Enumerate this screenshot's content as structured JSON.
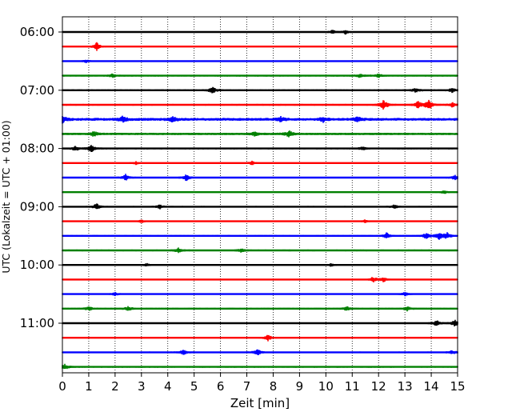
{
  "chart_data": {
    "type": "line",
    "title": "",
    "xlabel": "Zeit  [min]",
    "ylabel": "UTC (Lokalzeit = UTC + 01:00)",
    "xlim": [
      0,
      15
    ],
    "x_ticks": [
      "0",
      "1",
      "2",
      "3",
      "4",
      "5",
      "6",
      "7",
      "8",
      "9",
      "10",
      "11",
      "12",
      "13",
      "14",
      "15"
    ],
    "y_ticks": [
      "06:00",
      "07:00",
      "08:00",
      "09:00",
      "10:00",
      "11:00"
    ],
    "vertical_grid": true,
    "trace_interval_min": 15,
    "trace_colors": [
      "#000000",
      "#ff0000",
      "#0000ff",
      "#008000"
    ],
    "series": [
      {
        "start": "06:00",
        "color": "#000000",
        "noise": 0.6,
        "events": [
          [
            10.25,
            2.2
          ],
          [
            10.75,
            2.4
          ]
        ]
      },
      {
        "start": "06:15",
        "color": "#ff0000",
        "noise": 0.6,
        "events": [
          [
            1.3,
            4.2
          ]
        ]
      },
      {
        "start": "06:30",
        "color": "#0000ff",
        "noise": 0.6,
        "events": [
          [
            0.9,
            1.6
          ]
        ]
      },
      {
        "start": "06:45",
        "color": "#008000",
        "noise": 0.9,
        "events": [
          [
            1.9,
            1.6
          ],
          [
            11.3,
            1.8
          ],
          [
            12.0,
            1.8
          ]
        ]
      },
      {
        "start": "07:00",
        "color": "#000000",
        "noise": 1.0,
        "events": [
          [
            5.7,
            3.2
          ],
          [
            13.4,
            1.8
          ],
          [
            14.8,
            2.0
          ]
        ]
      },
      {
        "start": "07:15",
        "color": "#ff0000",
        "noise": 0.9,
        "events": [
          [
            12.2,
            5.0
          ],
          [
            13.5,
            3.2
          ],
          [
            13.9,
            5.0
          ],
          [
            14.8,
            2.4
          ]
        ]
      },
      {
        "start": "07:30",
        "color": "#0000ff",
        "noise": 1.5,
        "events": [
          [
            0.0,
            3.2
          ],
          [
            2.3,
            3.0
          ],
          [
            4.2,
            2.4
          ],
          [
            8.3,
            2.2
          ],
          [
            9.9,
            2.2
          ],
          [
            11.2,
            2.2
          ]
        ]
      },
      {
        "start": "07:45",
        "color": "#008000",
        "noise": 1.2,
        "events": [
          [
            1.2,
            2.4
          ],
          [
            7.3,
            2.0
          ],
          [
            8.6,
            3.0
          ]
        ]
      },
      {
        "start": "08:00",
        "color": "#000000",
        "noise": 0.9,
        "events": [
          [
            0.5,
            2.4
          ],
          [
            1.1,
            3.4
          ],
          [
            11.4,
            1.6
          ]
        ]
      },
      {
        "start": "08:15",
        "color": "#ff0000",
        "noise": 0.6,
        "events": [
          [
            2.8,
            1.6
          ],
          [
            7.2,
            2.0
          ]
        ]
      },
      {
        "start": "08:30",
        "color": "#0000ff",
        "noise": 0.8,
        "events": [
          [
            2.4,
            3.2
          ],
          [
            4.7,
            3.2
          ],
          [
            14.9,
            2.2
          ]
        ]
      },
      {
        "start": "08:45",
        "color": "#008000",
        "noise": 0.7,
        "events": [
          [
            14.5,
            1.6
          ]
        ]
      },
      {
        "start": "09:00",
        "color": "#000000",
        "noise": 0.8,
        "events": [
          [
            1.3,
            3.0
          ],
          [
            3.7,
            2.0
          ],
          [
            12.6,
            1.8
          ]
        ]
      },
      {
        "start": "09:15",
        "color": "#ff0000",
        "noise": 0.6,
        "events": [
          [
            3.0,
            1.6
          ],
          [
            11.5,
            1.6
          ]
        ]
      },
      {
        "start": "09:30",
        "color": "#0000ff",
        "noise": 0.8,
        "events": [
          [
            12.3,
            3.2
          ],
          [
            13.8,
            3.0
          ],
          [
            14.3,
            3.4
          ],
          [
            14.6,
            3.0
          ]
        ]
      },
      {
        "start": "09:45",
        "color": "#008000",
        "noise": 0.9,
        "events": [
          [
            4.4,
            2.4
          ],
          [
            6.8,
            1.8
          ]
        ]
      },
      {
        "start": "10:00",
        "color": "#000000",
        "noise": 0.6,
        "events": [
          [
            3.2,
            1.6
          ],
          [
            10.2,
            1.6
          ]
        ]
      },
      {
        "start": "10:15",
        "color": "#ff0000",
        "noise": 0.6,
        "events": [
          [
            11.8,
            3.2
          ],
          [
            12.2,
            2.6
          ]
        ]
      },
      {
        "start": "10:30",
        "color": "#0000ff",
        "noise": 0.7,
        "events": [
          [
            2.0,
            1.6
          ],
          [
            13.0,
            2.0
          ]
        ]
      },
      {
        "start": "10:45",
        "color": "#008000",
        "noise": 0.9,
        "events": [
          [
            1.0,
            2.0
          ],
          [
            2.5,
            2.2
          ],
          [
            10.8,
            2.0
          ],
          [
            13.1,
            2.2
          ]
        ]
      },
      {
        "start": "11:00",
        "color": "#000000",
        "noise": 0.8,
        "events": [
          [
            14.2,
            3.0
          ],
          [
            14.9,
            3.2
          ]
        ]
      },
      {
        "start": "11:15",
        "color": "#ff0000",
        "noise": 0.6,
        "events": [
          [
            7.8,
            3.2
          ]
        ]
      },
      {
        "start": "11:30",
        "color": "#0000ff",
        "noise": 0.8,
        "events": [
          [
            4.6,
            2.6
          ],
          [
            7.4,
            3.2
          ],
          [
            14.8,
            2.0
          ]
        ]
      },
      {
        "start": "11:45",
        "color": "#008000",
        "noise": 0.9,
        "events": [
          [
            0.1,
            2.6
          ]
        ]
      }
    ]
  }
}
